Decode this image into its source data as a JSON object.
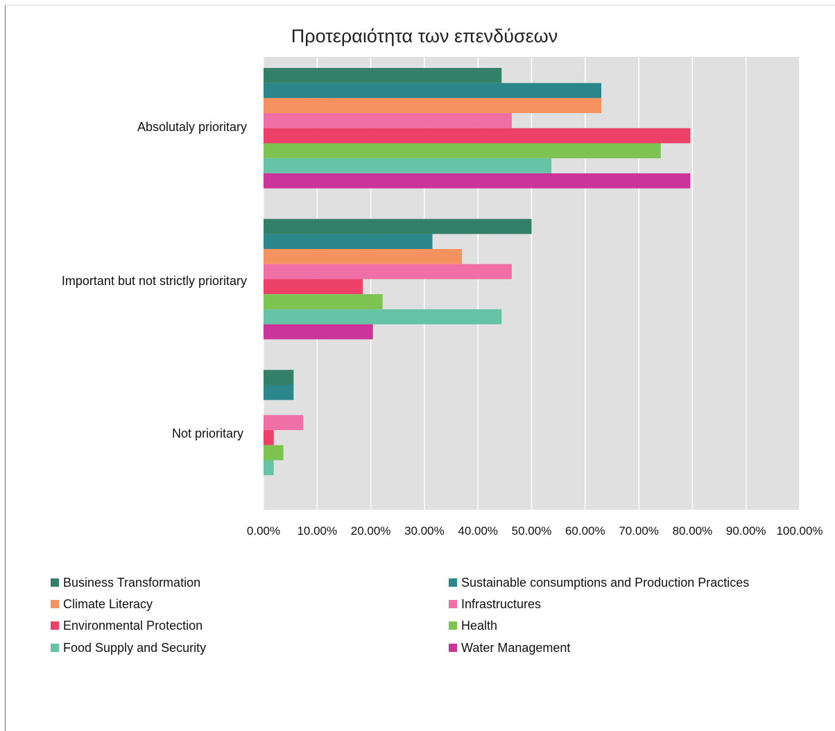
{
  "chart_data": {
    "type": "bar",
    "orientation": "horizontal",
    "title": "Προτεραιότητα των επενδύσεων",
    "categories": [
      "Absolutaly prioritary",
      "Important but not strictly prioritary",
      "Not prioritary"
    ],
    "xlim": [
      0,
      1
    ],
    "x_ticks": [
      "0.00%",
      "10.00%",
      "20.00%",
      "30.00%",
      "40.00%",
      "50.00%",
      "60.00%",
      "70.00%",
      "80.00%",
      "90.00%",
      "100.00%"
    ],
    "grid": true,
    "legend": "bottom",
    "series": [
      {
        "name": "Business Transformation",
        "color": "#337f67",
        "values": [
          0.444,
          0.5,
          0.056
        ]
      },
      {
        "name": "Sustainable consumptions and Production Practices",
        "color": "#2b868a",
        "values": [
          0.63,
          0.315,
          0.056
        ]
      },
      {
        "name": "Climate Literacy",
        "color": "#f69260",
        "values": [
          0.63,
          0.37,
          0
        ]
      },
      {
        "name": "Infrastructures",
        "color": "#f06fa6",
        "values": [
          0.463,
          0.463,
          0.074
        ]
      },
      {
        "name": "Environmental Protection",
        "color": "#ec4069",
        "values": [
          0.796,
          0.185,
          0.019
        ]
      },
      {
        "name": "Health",
        "color": "#7cc352",
        "values": [
          0.741,
          0.222,
          0.037
        ]
      },
      {
        "name": "Food Supply and Security",
        "color": "#67c3a5",
        "values": [
          0.537,
          0.444,
          0.019
        ]
      },
      {
        "name": "Water Management",
        "color": "#cb359b",
        "values": [
          0.796,
          0.204,
          0
        ]
      }
    ]
  }
}
